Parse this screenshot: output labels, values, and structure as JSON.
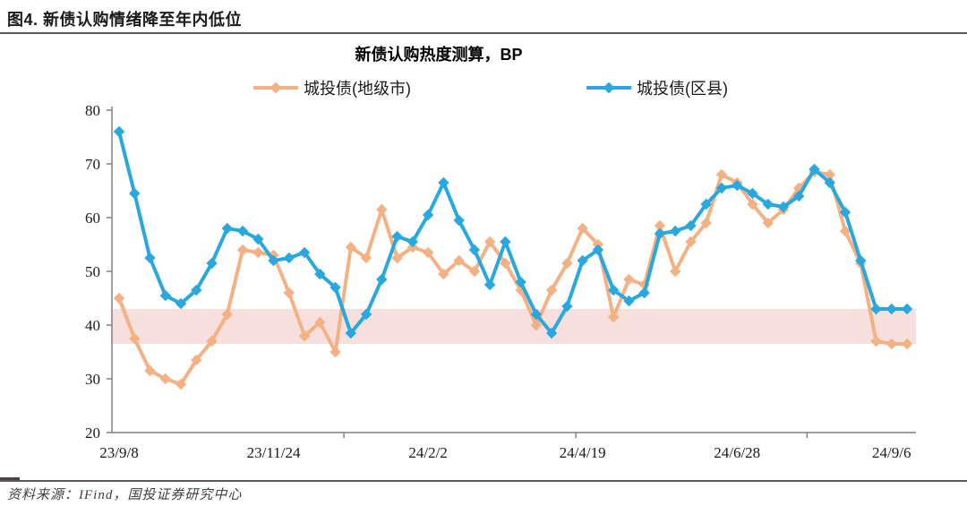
{
  "figure": {
    "title": "图4. 新债认购情绪降至年内低位",
    "source": "资料来源：IFind，国投证券研究中心"
  },
  "chart_data": {
    "type": "line",
    "title": "新债认购热度测算，BP",
    "xlabel": "",
    "ylabel": "",
    "ylim": [
      20,
      80
    ],
    "yticks": [
      20,
      30,
      40,
      50,
      60,
      70,
      80
    ],
    "grid": false,
    "legend_position": "top",
    "marker": "diamond",
    "x_tick_labels": [
      "23/9/8",
      "23/11/24",
      "24/2/2",
      "24/4/19",
      "24/6/28",
      "24/9/6"
    ],
    "x_tick_indices": [
      0,
      10,
      20,
      30,
      40,
      50
    ],
    "n_points": 52,
    "band": {
      "from": 36.5,
      "to": 43,
      "color": "#F6DFDD"
    },
    "series": [
      {
        "name": "城投债(地级市)",
        "color": "#F4B183",
        "values": [
          45,
          37.5,
          31.5,
          30,
          29,
          33.5,
          37,
          42,
          54,
          53.5,
          53,
          46,
          38,
          40.5,
          35,
          54.5,
          52.5,
          61.5,
          52.5,
          54.5,
          53.5,
          49.5,
          52,
          50,
          55.5,
          51.5,
          46.5,
          40,
          46.5,
          51.5,
          58,
          55,
          41.5,
          48.5,
          47.5,
          58.5,
          50,
          55.5,
          59,
          68,
          66.5,
          62.5,
          59,
          61.5,
          65.5,
          68.5,
          68,
          57.5,
          51.5,
          37,
          36.5,
          36.5
        ]
      },
      {
        "name": "城投债(区县)",
        "color": "#29A8E0",
        "values": [
          76,
          64.5,
          52.5,
          45.5,
          44,
          46.5,
          51.5,
          58,
          57.5,
          56,
          52,
          52.5,
          53.5,
          49.5,
          47,
          38.5,
          42,
          48.5,
          56.5,
          55.5,
          60.5,
          66.5,
          59.5,
          54,
          47.5,
          55.5,
          48,
          42,
          38.5,
          43.5,
          52,
          54,
          46.5,
          44.5,
          46,
          57,
          57.5,
          58.5,
          62.5,
          65.5,
          66,
          64.5,
          62.5,
          62,
          64,
          69,
          66.5,
          61,
          52,
          43,
          43,
          43
        ]
      }
    ]
  },
  "style_colors": {
    "rule": "#5E5757",
    "axis": "#808080",
    "tick_text": "#1A1A1A"
  }
}
